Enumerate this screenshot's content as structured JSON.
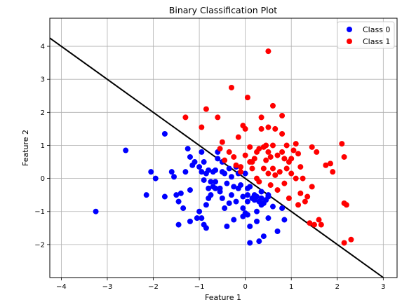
{
  "chart_data": {
    "type": "scatter",
    "title": "Binary Classification Plot",
    "xlabel": "Feature 1",
    "ylabel": "Feature 2",
    "xlim": [
      -4.25,
      3.3
    ],
    "ylim": [
      -3.0,
      4.85
    ],
    "xticks": [
      -4,
      -3,
      -2,
      -1,
      0,
      1,
      2,
      3
    ],
    "xtick_labels": [
      "−4",
      "−3",
      "−2",
      "−1",
      "0",
      "1",
      "2",
      "3"
    ],
    "yticks": [
      -2,
      -1,
      0,
      1,
      2,
      3,
      4
    ],
    "ytick_labels": [
      "−2",
      "−1",
      "0",
      "1",
      "2",
      "3",
      "4"
    ],
    "grid": true,
    "legend_position": "top-right",
    "series": [
      {
        "name": "Class 0",
        "color": "#0000ff",
        "points": [
          [
            -3.25,
            -1.0
          ],
          [
            -2.6,
            0.85
          ],
          [
            -2.15,
            -0.5
          ],
          [
            -2.05,
            0.2
          ],
          [
            -1.95,
            0.0
          ],
          [
            -1.75,
            1.35
          ],
          [
            -1.75,
            -0.55
          ],
          [
            -1.6,
            0.2
          ],
          [
            -1.55,
            0.05
          ],
          [
            -1.5,
            -0.5
          ],
          [
            -1.45,
            -0.7
          ],
          [
            -1.4,
            -0.45
          ],
          [
            -1.45,
            -1.4
          ],
          [
            -1.35,
            -0.9
          ],
          [
            -1.3,
            0.2
          ],
          [
            -1.25,
            0.9
          ],
          [
            -1.2,
            0.65
          ],
          [
            -1.2,
            -0.35
          ],
          [
            -1.2,
            -1.3
          ],
          [
            -1.15,
            0.4
          ],
          [
            -1.1,
            0.5
          ],
          [
            -1.05,
            -1.2
          ],
          [
            -1.0,
            0.35
          ],
          [
            -0.95,
            0.8
          ],
          [
            -0.95,
            0.2
          ],
          [
            -0.95,
            -1.2
          ],
          [
            -0.9,
            0.5
          ],
          [
            -0.9,
            -0.05
          ],
          [
            -0.9,
            -1.4
          ],
          [
            -0.85,
            -0.8
          ],
          [
            -0.85,
            0.15
          ],
          [
            -0.85,
            -1.5
          ],
          [
            -0.8,
            0.25
          ],
          [
            -0.8,
            -0.3
          ],
          [
            -0.8,
            -0.6
          ],
          [
            -0.75,
            -0.1
          ],
          [
            -0.75,
            -0.5
          ],
          [
            -0.7,
            0.2
          ],
          [
            -0.7,
            -0.25
          ],
          [
            -0.65,
            0.25
          ],
          [
            -0.65,
            -0.1
          ],
          [
            -0.65,
            -0.3
          ],
          [
            -0.6,
            0.8
          ],
          [
            -0.6,
            0.6
          ],
          [
            -0.55,
            -0.4
          ],
          [
            -0.55,
            -0.3
          ],
          [
            -0.5,
            0.2
          ],
          [
            -0.5,
            0.5
          ],
          [
            -0.5,
            -0.6
          ],
          [
            -0.45,
            0.15
          ],
          [
            -0.45,
            -0.9
          ],
          [
            -0.4,
            -0.15
          ],
          [
            -0.4,
            -1.45
          ],
          [
            -0.35,
            0.3
          ],
          [
            -0.35,
            -0.75
          ],
          [
            -0.3,
            -0.5
          ],
          [
            -0.25,
            -0.25
          ],
          [
            -0.25,
            -1.25
          ],
          [
            -0.2,
            0.35
          ],
          [
            -0.2,
            -0.7
          ],
          [
            -0.15,
            -0.3
          ],
          [
            -0.1,
            -0.2
          ],
          [
            -0.05,
            -0.55
          ],
          [
            -0.05,
            -0.9
          ],
          [
            -0.05,
            -1.15
          ],
          [
            0.0,
            -1.05
          ],
          [
            0.0,
            0.15
          ],
          [
            0.05,
            -0.3
          ],
          [
            0.05,
            -0.5
          ],
          [
            0.05,
            -0.7
          ],
          [
            0.05,
            -1.1
          ],
          [
            0.1,
            -0.25
          ],
          [
            0.1,
            -1.45
          ],
          [
            0.1,
            -1.95
          ],
          [
            0.15,
            -0.6
          ],
          [
            0.2,
            -0.5
          ],
          [
            0.2,
            -0.65
          ],
          [
            0.25,
            -0.55
          ],
          [
            0.25,
            -1.0
          ],
          [
            0.25,
            -1.3
          ],
          [
            0.3,
            -0.7
          ],
          [
            0.3,
            -1.9
          ],
          [
            0.35,
            -0.4
          ],
          [
            0.35,
            -0.6
          ],
          [
            0.35,
            -0.8
          ],
          [
            0.4,
            -0.75
          ],
          [
            0.4,
            -1.75
          ],
          [
            0.45,
            -0.65
          ],
          [
            0.5,
            -0.5
          ],
          [
            0.5,
            -0.55
          ],
          [
            0.5,
            -1.2
          ],
          [
            0.6,
            -0.85
          ],
          [
            0.7,
            -1.6
          ],
          [
            0.8,
            -0.9
          ],
          [
            0.85,
            -1.25
          ],
          [
            -0.15,
            0.15
          ],
          [
            -0.3,
            0.05
          ],
          [
            -1.0,
            -1.0
          ]
        ]
      },
      {
        "name": "Class 1",
        "color": "#ff0000",
        "points": [
          [
            -1.3,
            1.85
          ],
          [
            -0.95,
            1.55
          ],
          [
            -0.85,
            2.1
          ],
          [
            -0.6,
            1.85
          ],
          [
            -0.55,
            0.9
          ],
          [
            -0.5,
            1.1
          ],
          [
            -0.45,
            0.55
          ],
          [
            -0.35,
            0.8
          ],
          [
            -0.3,
            2.75
          ],
          [
            -0.25,
            0.65
          ],
          [
            -0.2,
            0.4
          ],
          [
            -0.15,
            1.25
          ],
          [
            -0.1,
            0.35
          ],
          [
            -0.05,
            1.6
          ],
          [
            0.0,
            1.5
          ],
          [
            0.0,
            0.7
          ],
          [
            0.05,
            2.45
          ],
          [
            0.1,
            0.95
          ],
          [
            0.1,
            0.5
          ],
          [
            0.15,
            0.3
          ],
          [
            0.2,
            0.6
          ],
          [
            0.25,
            0.8
          ],
          [
            0.25,
            0.0
          ],
          [
            0.3,
            0.9
          ],
          [
            0.3,
            -0.1
          ],
          [
            0.35,
            1.5
          ],
          [
            0.35,
            1.85
          ],
          [
            0.4,
            0.3
          ],
          [
            0.4,
            0.95
          ],
          [
            0.45,
            1.0
          ],
          [
            0.45,
            0.55
          ],
          [
            0.5,
            0.15
          ],
          [
            0.5,
            0.8
          ],
          [
            0.5,
            1.55
          ],
          [
            0.5,
            3.85
          ],
          [
            0.55,
            0.65
          ],
          [
            0.55,
            -0.2
          ],
          [
            0.6,
            0.3
          ],
          [
            0.6,
            1.0
          ],
          [
            0.6,
            2.2
          ],
          [
            0.65,
            1.5
          ],
          [
            0.7,
            0.7
          ],
          [
            0.7,
            -0.35
          ],
          [
            0.75,
            0.2
          ],
          [
            0.8,
            0.8
          ],
          [
            0.8,
            1.35
          ],
          [
            0.8,
            1.9
          ],
          [
            0.85,
            0.6
          ],
          [
            0.85,
            -0.15
          ],
          [
            0.9,
            0.3
          ],
          [
            0.9,
            1.0
          ],
          [
            0.95,
            0.5
          ],
          [
            0.95,
            -0.6
          ],
          [
            1.0,
            0.15
          ],
          [
            1.05,
            0.85
          ],
          [
            1.1,
            1.05
          ],
          [
            1.1,
            0.0
          ],
          [
            1.15,
            0.75
          ],
          [
            1.15,
            -0.8
          ],
          [
            1.2,
            0.35
          ],
          [
            1.2,
            -0.45
          ],
          [
            1.25,
            0.0
          ],
          [
            1.3,
            -0.7
          ],
          [
            1.35,
            -0.55
          ],
          [
            1.4,
            -1.35
          ],
          [
            1.45,
            0.95
          ],
          [
            1.45,
            -0.25
          ],
          [
            1.5,
            -1.4
          ],
          [
            1.55,
            0.8
          ],
          [
            1.6,
            -1.25
          ],
          [
            1.65,
            -1.4
          ],
          [
            1.75,
            0.4
          ],
          [
            1.85,
            0.45
          ],
          [
            1.9,
            0.2
          ],
          [
            2.1,
            1.05
          ],
          [
            2.15,
            0.65
          ],
          [
            2.15,
            -0.75
          ],
          [
            2.2,
            -0.8
          ],
          [
            2.15,
            -1.95
          ],
          [
            2.3,
            -1.85
          ],
          [
            0.15,
            0.5
          ],
          [
            -0.1,
            0.2
          ],
          [
            0.65,
            0.1
          ],
          [
            1.0,
            0.6
          ]
        ]
      }
    ],
    "decision_boundary": {
      "color": "#000000",
      "points": [
        [
          -4.25,
          4.25
        ],
        [
          3.0,
          -3.0
        ]
      ]
    }
  }
}
